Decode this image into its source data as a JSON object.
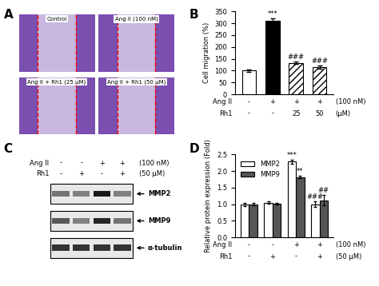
{
  "panel_labels": [
    "A",
    "B",
    "C",
    "D"
  ],
  "chart_data": [
    {
      "type": "bar",
      "ylabel": "Cell migration (%)",
      "categories": [
        null,
        null,
        null,
        null
      ],
      "values": [
        100,
        312,
        133,
        115
      ],
      "errors": [
        5,
        8,
        6,
        6
      ],
      "annotations": [
        null,
        "***",
        "###",
        "###"
      ],
      "colors": [
        "#ffffff",
        "#000000",
        "#ffffff",
        "#ffffff"
      ],
      "ylim": [
        0,
        350
      ],
      "yticks": [
        0,
        50,
        100,
        150,
        200,
        250,
        300,
        350
      ],
      "treatments": [
        {
          "label": "Ang II",
          "marks": [
            "-",
            "+",
            "+",
            "+"
          ],
          "unit": "(100 nM)"
        },
        {
          "label": "Rh1",
          "marks": [
            "-",
            "-",
            "25",
            "50"
          ],
          "unit": "(μM)"
        }
      ]
    },
    {
      "type": "grouped_bar",
      "ylabel": "Relative protein expression (Fold)",
      "categories": [
        null,
        null,
        null,
        null
      ],
      "series": [
        {
          "name": "MMP2",
          "color": "#ffffff",
          "values": [
            1.0,
            1.05,
            2.28,
            1.0
          ],
          "errors": [
            0.05,
            0.03,
            0.05,
            0.08
          ],
          "annotations": [
            null,
            null,
            "***",
            "###"
          ]
        },
        {
          "name": "MMP9",
          "color": "#555555",
          "values": [
            1.0,
            1.02,
            1.82,
            1.12
          ],
          "errors": [
            0.04,
            0.03,
            0.04,
            0.15
          ],
          "annotations": [
            null,
            null,
            "**",
            "##"
          ]
        }
      ],
      "legend": "upper left",
      "ylim": [
        0,
        2.5
      ],
      "yticks": [
        {
          "value": 0,
          "label": "0.0"
        },
        {
          "value": 0.5,
          "label": "0.5"
        },
        {
          "value": 1.0,
          "label": "1.0"
        },
        {
          "value": 1.5,
          "label": "1.5"
        },
        {
          "value": 2.0,
          "label": "2.0"
        },
        {
          "value": 2.5,
          "label": "2.5"
        }
      ],
      "treatments": [
        {
          "label": "Ang II",
          "marks": [
            "-",
            "-",
            "+",
            "+"
          ],
          "unit": "(100 nM)"
        },
        {
          "label": "Rh1",
          "marks": [
            "-",
            "+",
            "-",
            "+"
          ],
          "unit": "(50 μM)"
        }
      ]
    }
  ],
  "images": {
    "A": {
      "panels": [
        "Control",
        "Ang II (100 nM)",
        "Ang II + Rh1 (25 μM)",
        "Ang II + Rh1 (50 μM)"
      ]
    },
    "C": {
      "treatments": [
        {
          "label": "Ang II",
          "marks": [
            "-",
            "-",
            "+",
            "+"
          ],
          "unit": "(100 nM)"
        },
        {
          "label": "Rh1",
          "marks": [
            "-",
            "+",
            "-",
            "+"
          ],
          "unit": "(50 μM)"
        }
      ],
      "bands": [
        "MMP2",
        "MMP9",
        "α-tubulin"
      ]
    }
  }
}
